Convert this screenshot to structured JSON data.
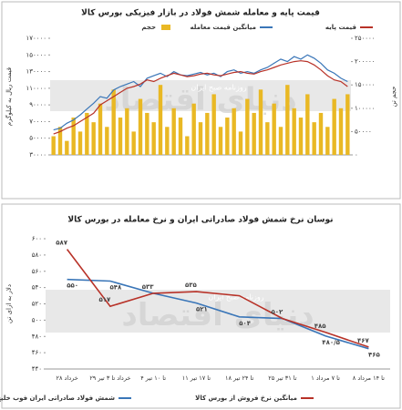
{
  "chart_data": [
    {
      "type": "combo",
      "title": "قیمت پایه و معامله شمش فولاد در بازار فیزیکی بورس کالا",
      "ylabel": "قیمت ریال به کیلوگرم",
      "y2label": "حجم تن",
      "watermark": "دنیای اقتصاد",
      "watermark_sub": "روزنامه صبح ایران",
      "categories": [
        null,
        null,
        null,
        null,
        null,
        null,
        null,
        null,
        null,
        null,
        null,
        null,
        null,
        null,
        null,
        null,
        null,
        null,
        null,
        null,
        null,
        null,
        null,
        null,
        null,
        null,
        null,
        null,
        null,
        null,
        null,
        null,
        null,
        null,
        null,
        null,
        null,
        null,
        null,
        null,
        null,
        null,
        null,
        null,
        null
      ],
      "series": [
        {
          "name": "حجم",
          "type": "bar",
          "axis": "y2",
          "color": "#e9b824",
          "values": [
            40000,
            60000,
            30000,
            80000,
            50000,
            90000,
            70000,
            110000,
            60000,
            140000,
            80000,
            100000,
            50000,
            120000,
            90000,
            70000,
            150000,
            60000,
            100000,
            80000,
            40000,
            110000,
            70000,
            90000,
            130000,
            60000,
            80000,
            100000,
            50000,
            120000,
            90000,
            140000,
            70000,
            110000,
            60000,
            150000,
            100000,
            80000,
            130000,
            70000,
            90000,
            60000,
            120000,
            100000,
            130000
          ]
        },
        {
          "name": "میانگین قیمت معامله",
          "type": "line",
          "color": "#3a76b8",
          "values": [
            60000,
            62000,
            68000,
            72000,
            78000,
            85000,
            92000,
            100000,
            98000,
            108000,
            112000,
            115000,
            118000,
            112000,
            122000,
            125000,
            128000,
            124000,
            130000,
            126000,
            125000,
            127000,
            129000,
            126000,
            128000,
            124000,
            130000,
            132000,
            128000,
            130000,
            128000,
            132000,
            135000,
            140000,
            145000,
            142000,
            148000,
            145000,
            150000,
            146000,
            140000,
            132000,
            128000,
            122000,
            118000
          ]
        },
        {
          "name": "قیمت پایه",
          "type": "line",
          "color": "#b83228",
          "values": [
            55000,
            58000,
            62000,
            65000,
            70000,
            75000,
            80000,
            90000,
            95000,
            100000,
            105000,
            110000,
            112000,
            115000,
            120000,
            118000,
            122000,
            125000,
            128000,
            126000,
            124000,
            125000,
            127000,
            128000,
            126000,
            125000,
            127000,
            129000,
            130000,
            128000,
            127000,
            130000,
            132000,
            135000,
            138000,
            140000,
            142000,
            143000,
            142000,
            138000,
            132000,
            125000,
            120000,
            118000,
            112000
          ]
        }
      ],
      "ylim": [
        30000,
        170000
      ],
      "yticks": [
        {
          "value": 30000,
          "label": "۳۰۰۰۰"
        },
        {
          "value": 50000,
          "label": "۵۰۰۰۰"
        },
        {
          "value": 70000,
          "label": "۷۰۰۰۰"
        },
        {
          "value": 90000,
          "label": "۹۰۰۰۰"
        },
        {
          "value": 110000,
          "label": "۱۱۰۰۰۰"
        },
        {
          "value": 130000,
          "label": "۱۳۰۰۰۰"
        },
        {
          "value": 150000,
          "label": "۱۵۰۰۰۰"
        },
        {
          "value": 170000,
          "label": "۱۷۰۰۰۰"
        }
      ],
      "y2lim": [
        0,
        250000
      ],
      "y2ticks": [
        {
          "value": 0,
          "label": "۰"
        },
        {
          "value": 50000,
          "label": "۵۰۰۰۰"
        },
        {
          "value": 100000,
          "label": "۱۰۰۰۰۰"
        },
        {
          "value": 150000,
          "label": "۱۵۰۰۰۰"
        },
        {
          "value": 200000,
          "label": "۲۰۰۰۰۰"
        },
        {
          "value": 250000,
          "label": "۲۵۰۰۰۰"
        }
      ],
      "grid": false,
      "legend": "top"
    },
    {
      "type": "line",
      "title": "نوسان نرخ شمش فولاد صادراتی ایران و نرخ معامله در بورس کالا",
      "ylabel": "دلار به ازای تن",
      "watermark": "دنیای اقتصاد",
      "watermark_sub": "روزنامه صبح ایران",
      "categories": [
        "۲۸ خرداد",
        "۲۹ خرداد تا ۳ تیر",
        "۴ تا ۱۰ تیر",
        "۱۱ تا ۱۷ تیر",
        "۱۸ تا ۲۴ تیر",
        "۲۵ تا ۳۱ تیر",
        "۱ تا ۷ مرداد",
        "۸ تا ۱۴ مرداد"
      ],
      "series": [
        {
          "name": "شمش فولاد صادراتی ایران فوب خلیج فارس",
          "color": "#3a76b8",
          "values": [
            550,
            548,
            533,
            521,
            504,
            502,
            480.5,
            465
          ],
          "value_labels": [
            "۵۵۰",
            "۵۴۸",
            null,
            "۵۲۱",
            "۵۰۴",
            null,
            "۴۸۰/۵",
            "۴۶۵"
          ]
        },
        {
          "name": "میانگین نرخ فروش از بورس کالا",
          "color": "#b83228",
          "values": [
            587,
            517,
            533,
            535,
            530,
            502,
            485,
            467
          ],
          "value_labels": [
            "۵۸۷",
            "۵۱۷",
            "۵۳۳",
            "۵۳۵",
            null,
            "۵۰۲",
            "۴۸۵",
            "۴۶۷"
          ]
        }
      ],
      "ylim": [
        440,
        600
      ],
      "yticks": [
        {
          "value": 440,
          "label": "۴۴۰"
        },
        {
          "value": 460,
          "label": "۴۶۰"
        },
        {
          "value": 480,
          "label": "۴۸۰"
        },
        {
          "value": 500,
          "label": "۵۰۰"
        },
        {
          "value": 520,
          "label": "۵۲۰"
        },
        {
          "value": 540,
          "label": "۵۴۰"
        },
        {
          "value": 560,
          "label": "۵۶۰"
        },
        {
          "value": 580,
          "label": "۵۸۰"
        },
        {
          "value": 600,
          "label": "۶۰۰"
        }
      ],
      "grid": false,
      "legend": "bottom"
    }
  ]
}
